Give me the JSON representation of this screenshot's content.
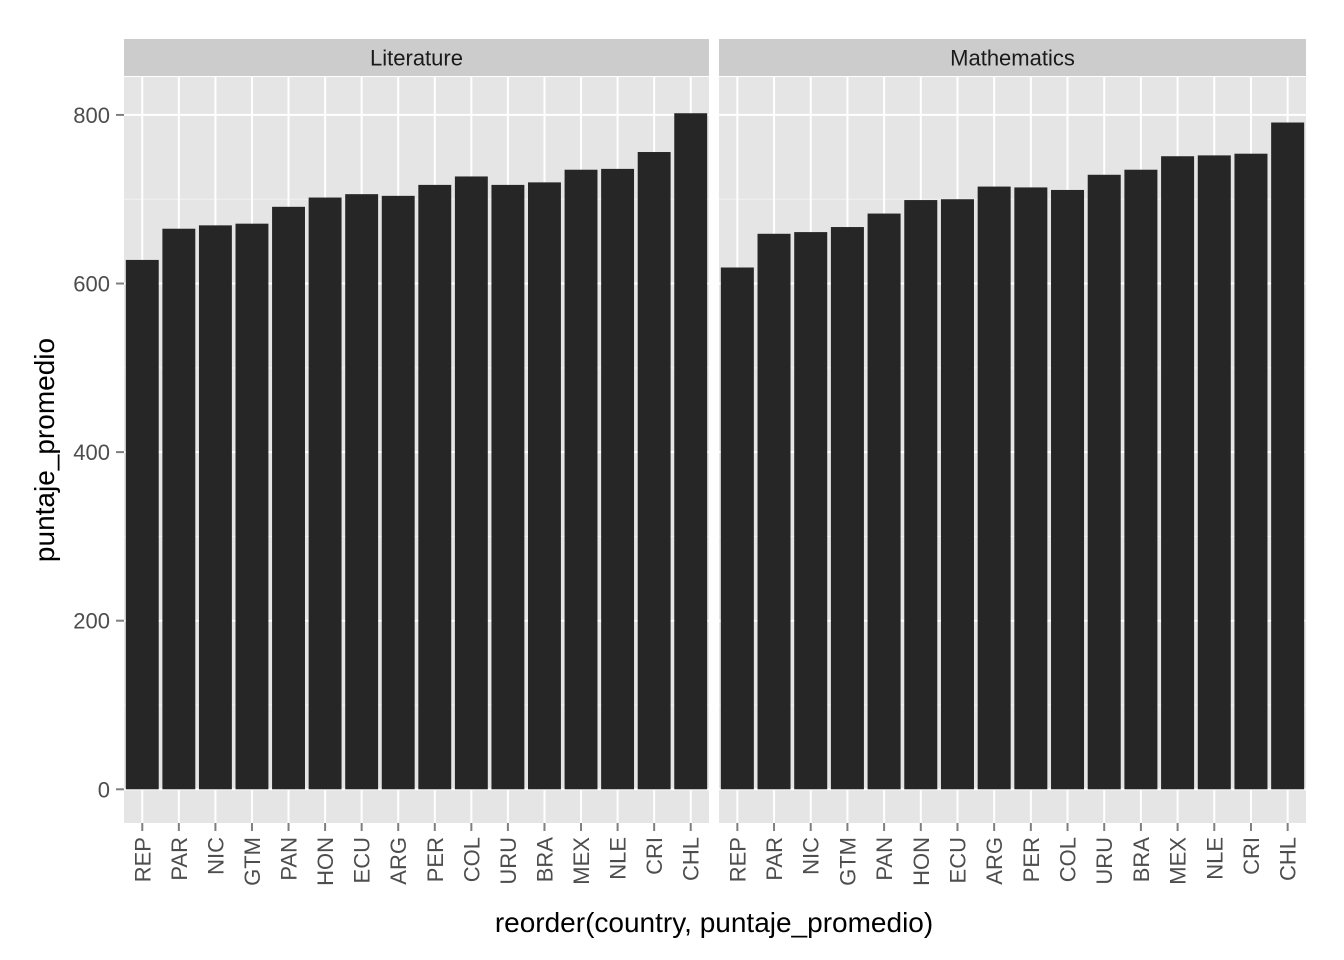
{
  "chart_data": {
    "type": "bar",
    "xlabel": "reorder(country, puntaje_promedio)",
    "ylabel": "puntaje_promedio",
    "ylim": [
      -40,
      845
    ],
    "yticks": [
      0,
      200,
      400,
      600,
      800
    ],
    "grid": true,
    "categories": [
      "REP",
      "PAR",
      "NIC",
      "GTM",
      "PAN",
      "HON",
      "ECU",
      "ARG",
      "PER",
      "COL",
      "URU",
      "BRA",
      "MEX",
      "NLE",
      "CRI",
      "CHL"
    ],
    "panels": [
      {
        "name": "Literature",
        "values": [
          628,
          665,
          669,
          671,
          691,
          702,
          706,
          704,
          717,
          727,
          717,
          720,
          735,
          736,
          756,
          802
        ]
      },
      {
        "name": "Mathematics",
        "values": [
          619,
          659,
          661,
          667,
          683,
          699,
          700,
          715,
          714,
          711,
          729,
          735,
          751,
          752,
          754,
          791
        ]
      }
    ],
    "colors": {
      "bar": "#262626",
      "panel_bg": "#e5e5e5",
      "strip_bg": "#cccccc",
      "grid_major": "#ffffff",
      "grid_minor": "#f2f2f2",
      "tick": "#7f7f7f"
    }
  }
}
